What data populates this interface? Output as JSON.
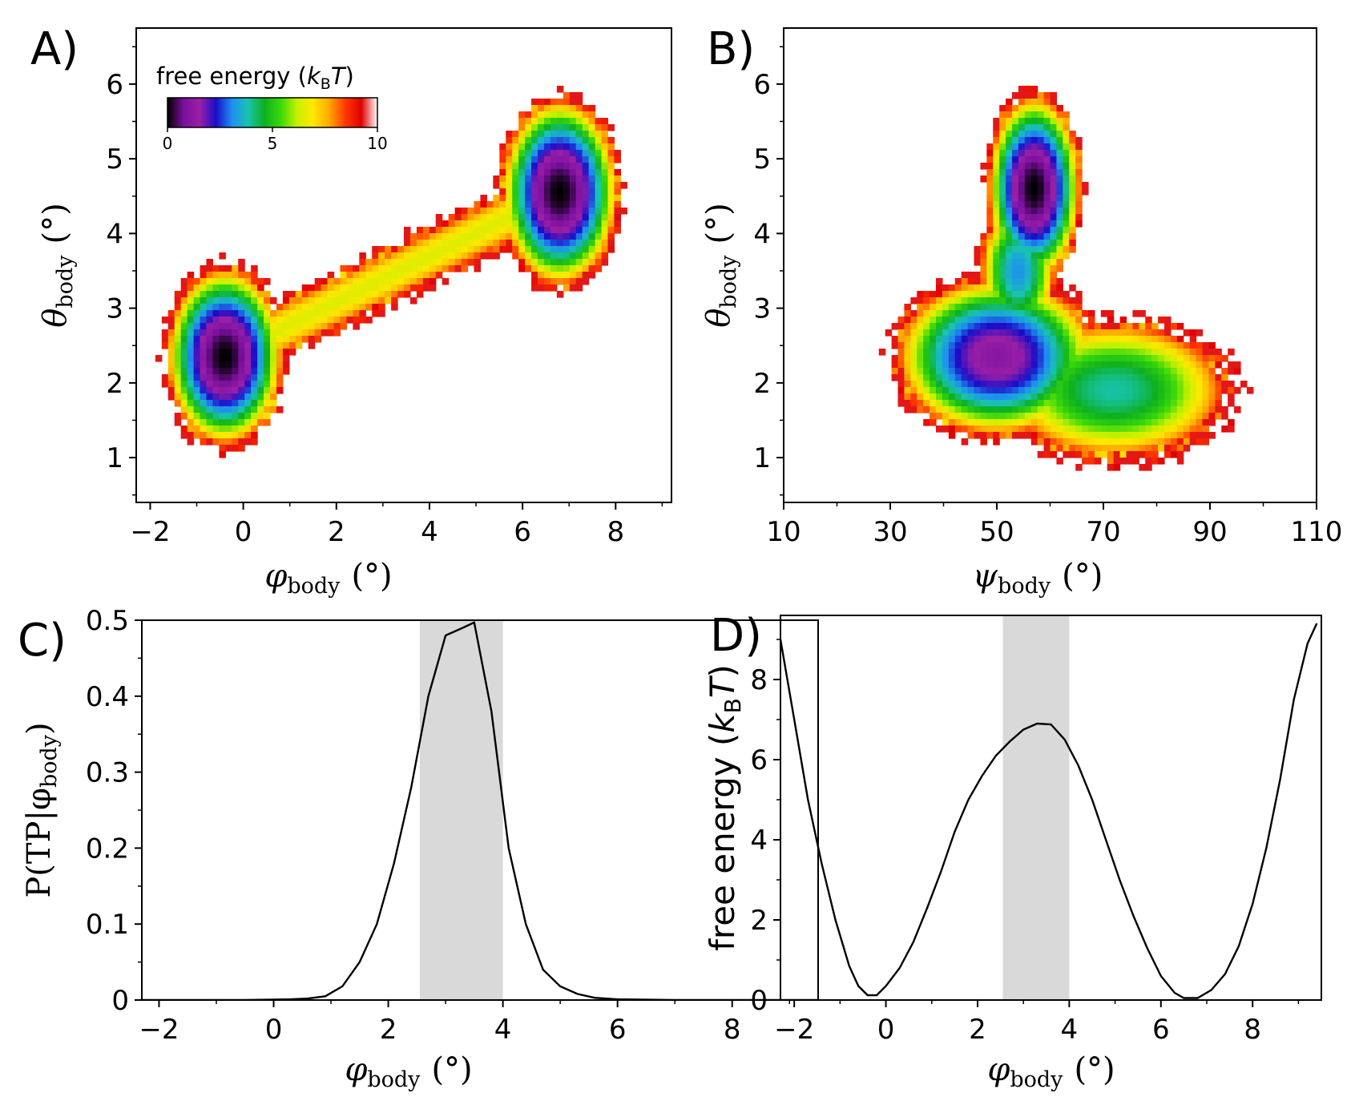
{
  "chart_data": [
    {
      "panel": "A)",
      "type": "heatmap",
      "xlabel": "φ",
      "xlabel_sub": "body",
      "xlabel_unit": "(°)",
      "ylabel": "θ",
      "ylabel_sub": "body",
      "ylabel_unit": "(°)",
      "xlim": [
        -2.3,
        9.2
      ],
      "ylim": [
        0.4,
        6.75
      ],
      "xticks": [
        -2,
        0,
        2,
        4,
        6,
        8
      ],
      "xtick_labels": [
        "−2",
        "0",
        "2",
        "4",
        "6",
        "8"
      ],
      "yticks": [
        1,
        2,
        3,
        4,
        5,
        6
      ],
      "ytick_labels": [
        "1",
        "2",
        "3",
        "4",
        "5",
        "6"
      ],
      "colorbar": {
        "title": "free energy (",
        "title_k": "k",
        "title_sub": "B",
        "title_T": "T",
        "title_close": ")",
        "range": [
          0,
          10
        ],
        "ticks": [
          0,
          5,
          10
        ],
        "tick_labels": [
          "0",
          "5",
          "10"
        ],
        "colors": [
          "#000000",
          "#7a0f9e",
          "#9b1fa6",
          "#1a0dc8",
          "#1e8ff0",
          "#18c4b0",
          "#0eb020",
          "#38d80a",
          "#c4f000",
          "#ffe800",
          "#ffaa00",
          "#ff3a00",
          "#e00000",
          "#ffffff"
        ]
      },
      "minima": [
        {
          "x": -0.4,
          "y": 2.35,
          "sx": 1.0,
          "sy": 0.95,
          "rot": -10,
          "depth": 0
        },
        {
          "x": 6.8,
          "y": 4.55,
          "sx": 1.0,
          "sy": 1.0,
          "rot": 0,
          "depth": 0
        }
      ],
      "saddle": {
        "x": 3.2,
        "y": 3.3,
        "value": 7
      }
    },
    {
      "panel": "B)",
      "type": "heatmap",
      "xlabel": "ψ",
      "xlabel_sub": "body",
      "xlabel_unit": "(°)",
      "ylabel": "θ",
      "ylabel_sub": "body",
      "ylabel_unit": "(°)",
      "xlim": [
        10,
        110
      ],
      "ylim": [
        0.4,
        6.75
      ],
      "xticks": [
        10,
        30,
        50,
        70,
        90,
        110
      ],
      "xtick_labels": [
        "10",
        "30",
        "50",
        "70",
        "90",
        "110"
      ],
      "yticks": [
        1,
        2,
        3,
        4,
        5,
        6
      ],
      "ytick_labels": [
        "1",
        "2",
        "3",
        "4",
        "5",
        "6"
      ],
      "minima": [
        {
          "x": 57,
          "y": 4.6,
          "sx": 7,
          "sy": 1.0,
          "rot": 0,
          "depth": 0
        },
        {
          "x": 50,
          "y": 2.35,
          "sx": 16,
          "sy": 0.9,
          "rot": 0,
          "depth": 1.2
        }
      ]
    },
    {
      "panel": "C)",
      "type": "line",
      "xlabel": "φ",
      "xlabel_sub": "body",
      "xlabel_unit": "(°)",
      "ylabel": "P(TP|φ",
      "ylabel_sub": "body",
      "ylabel_close": ")",
      "xlim": [
        -2.3,
        9.5
      ],
      "ylim": [
        0,
        0.5
      ],
      "xticks": [
        -2,
        0,
        2,
        4,
        6,
        8
      ],
      "xtick_labels": [
        "−2",
        "0",
        "2",
        "4",
        "6",
        "8"
      ],
      "yticks": [
        0,
        0.1,
        0.2,
        0.3,
        0.4,
        0.5
      ],
      "ytick_labels": [
        "0",
        "0.1",
        "0.2",
        "0.3",
        "0.4",
        "0.5"
      ],
      "shaded_region": [
        2.55,
        4.0
      ],
      "x": [
        -2.3,
        -1.5,
        -1.0,
        -0.5,
        0.0,
        0.3,
        0.6,
        0.9,
        1.2,
        1.5,
        1.8,
        2.1,
        2.4,
        2.7,
        3.0,
        3.3,
        3.5,
        3.8,
        4.1,
        4.4,
        4.7,
        5.0,
        5.3,
        5.6,
        6.0,
        7.0,
        8.0,
        9.5
      ],
      "y": [
        0.0,
        0.0,
        0.0,
        0.0,
        0.0005,
        0.001,
        0.002,
        0.005,
        0.018,
        0.05,
        0.1,
        0.18,
        0.28,
        0.4,
        0.48,
        0.49,
        0.497,
        0.38,
        0.2,
        0.1,
        0.04,
        0.018,
        0.008,
        0.003,
        0.001,
        0.0,
        0.0,
        0.0
      ]
    },
    {
      "panel": "D)",
      "type": "line",
      "xlabel": "φ",
      "xlabel_sub": "body",
      "xlabel_unit": "(°)",
      "ylabel": "free energy (",
      "ylabel_k": "k",
      "ylabel_sub": "B",
      "ylabel_T": "T",
      "ylabel_close": ")",
      "xlim": [
        -2.3,
        9.5
      ],
      "ylim": [
        0,
        9.6
      ],
      "xticks": [
        -2,
        0,
        2,
        4,
        6,
        8
      ],
      "xtick_labels": [
        "−2",
        "0",
        "2",
        "4",
        "6",
        "8"
      ],
      "yticks": [
        0,
        2,
        4,
        6,
        8
      ],
      "ytick_labels": [
        "0",
        "2",
        "4",
        "6",
        "8"
      ],
      "shaded_region": [
        2.55,
        4.0
      ],
      "x": [
        -2.3,
        -2.0,
        -1.7,
        -1.4,
        -1.1,
        -0.8,
        -0.6,
        -0.4,
        -0.2,
        0.0,
        0.3,
        0.6,
        0.9,
        1.2,
        1.5,
        1.8,
        2.1,
        2.4,
        2.7,
        3.0,
        3.3,
        3.6,
        3.9,
        4.2,
        4.5,
        4.8,
        5.1,
        5.4,
        5.7,
        6.0,
        6.3,
        6.5,
        6.8,
        7.1,
        7.4,
        7.7,
        8.0,
        8.3,
        8.6,
        8.9,
        9.2,
        9.4
      ],
      "y": [
        9.0,
        7.0,
        5.0,
        3.4,
        2.0,
        0.85,
        0.35,
        0.12,
        0.12,
        0.35,
        0.8,
        1.45,
        2.3,
        3.2,
        4.2,
        5.0,
        5.6,
        6.1,
        6.45,
        6.75,
        6.9,
        6.88,
        6.5,
        5.85,
        5.0,
        4.0,
        3.0,
        2.1,
        1.3,
        0.6,
        0.18,
        0.05,
        0.05,
        0.25,
        0.65,
        1.35,
        2.4,
        3.8,
        5.5,
        7.5,
        8.9,
        9.4
      ]
    }
  ]
}
